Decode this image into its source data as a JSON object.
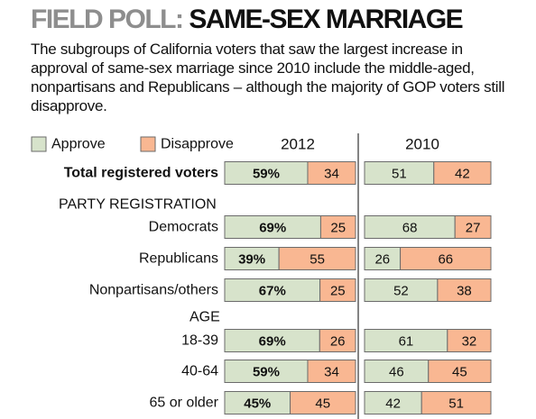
{
  "title": {
    "prefix": "FIELD POLL:",
    "main": "SAME-SEX MARRIAGE"
  },
  "subtitle": "The subgroups of California voters that saw the largest increase in approval of same-sex marriage since 2010 include the middle-aged, nonpartisans and Republicans – although the majority of GOP voters still disapprove.",
  "colors": {
    "approve": "#d7e3cb",
    "disapprove": "#f9b792",
    "border": "#6b6b6b",
    "divider": "#333333"
  },
  "chart_data": {
    "type": "bar",
    "orientation": "horizontal",
    "stacked": true,
    "legend": {
      "position": "top-left",
      "entries": [
        "Approve",
        "Disapprove"
      ]
    },
    "panels": [
      {
        "name": "2012",
        "show_percent_on_approve": true
      },
      {
        "name": "2010",
        "show_percent_on_approve": false
      }
    ],
    "sections": [
      {
        "type": "row",
        "label": "Total registered voters",
        "bold": true,
        "values": {
          "2012": [
            59,
            34
          ],
          "2010": [
            51,
            42
          ]
        }
      },
      {
        "type": "header",
        "label": "PARTY REGISTRATION"
      },
      {
        "type": "row",
        "label": "Democrats",
        "values": {
          "2012": [
            69,
            25
          ],
          "2010": [
            68,
            27
          ]
        }
      },
      {
        "type": "row",
        "label": "Republicans",
        "values": {
          "2012": [
            39,
            55
          ],
          "2010": [
            26,
            66
          ]
        }
      },
      {
        "type": "row",
        "label": "Nonpartisans/others",
        "values": {
          "2012": [
            67,
            25
          ],
          "2010": [
            52,
            38
          ]
        }
      },
      {
        "type": "header",
        "label": "AGE"
      },
      {
        "type": "row",
        "label": "18-39",
        "values": {
          "2012": [
            69,
            26
          ],
          "2010": [
            61,
            32
          ]
        }
      },
      {
        "type": "row",
        "label": "40-64",
        "values": {
          "2012": [
            59,
            34
          ],
          "2010": [
            46,
            45
          ]
        }
      },
      {
        "type": "row",
        "label": "65 or older",
        "values": {
          "2012": [
            45,
            45
          ],
          "2010": [
            42,
            51
          ]
        }
      }
    ]
  }
}
